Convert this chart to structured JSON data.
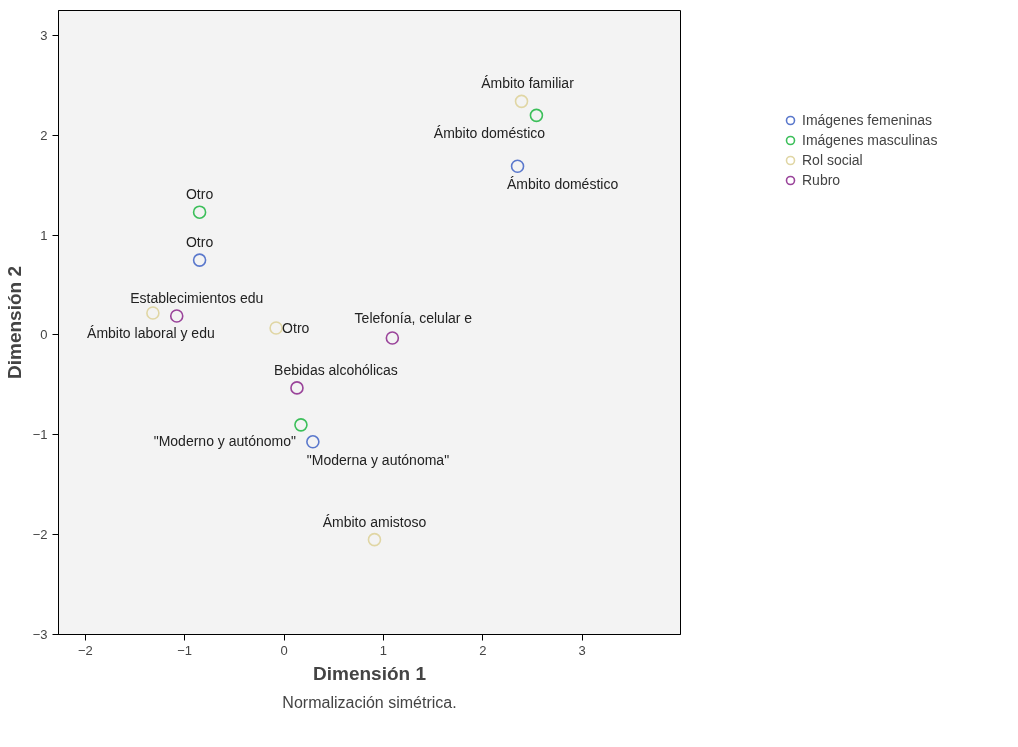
{
  "chart_data": {
    "type": "scatter",
    "xlabel": "Dimensión 1",
    "ylabel": "Dimensión 2",
    "xlim": [
      -2.27,
      3.99
    ],
    "ylim": [
      -3,
      3.25
    ],
    "xticks": [
      -2,
      -1,
      0,
      1,
      2,
      3
    ],
    "yticks": [
      -3,
      -2,
      -1,
      0,
      1,
      2,
      3
    ],
    "grid": false,
    "legend": "top right",
    "marker": "circle",
    "series": [
      {
        "name": "Imágenes femeninas",
        "color": "#5a78cc",
        "x": [
          2.35,
          -0.85,
          0.29
        ],
        "values": [
          1.69,
          0.75,
          -1.07
        ],
        "value_labels": [
          "Ámbito doméstico",
          "Otro",
          "\"Moderna y autónoma\""
        ]
      },
      {
        "name": "Imágenes masculinas",
        "color": "#3cbf5a",
        "x": [
          2.54,
          -0.85,
          0.17
        ],
        "values": [
          2.2,
          1.23,
          -0.9
        ],
        "value_labels": [
          "Ámbito doméstico",
          "Otro",
          "\"Moderno y autónomo\""
        ]
      },
      {
        "name": "Rol social",
        "color": "#e0d6a4",
        "x": [
          2.39,
          -1.32,
          -0.08,
          0.91
        ],
        "values": [
          2.34,
          0.22,
          0.07,
          -2.05
        ],
        "value_labels": [
          "Ámbito familiar",
          "Ámbito laboral y edu",
          "Otro",
          "Ámbito amistoso"
        ]
      },
      {
        "name": "Rubro",
        "color": "#9a449a",
        "x": [
          -1.08,
          1.09,
          0.13
        ],
        "values": [
          0.19,
          -0.03,
          -0.53
        ],
        "value_labels": [
          "Establecimientos edu",
          "Telefonía, celular e",
          "Bebidas alcohólicas"
        ]
      }
    ],
    "annotations": [
      "Normalización simétrica."
    ]
  }
}
